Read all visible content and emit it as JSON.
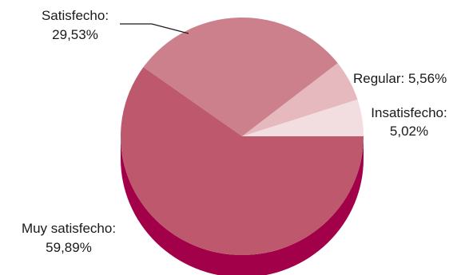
{
  "chart_data": {
    "type": "pie",
    "style": "3d",
    "slices": [
      {
        "name": "Insatisfecho",
        "value": 5.02,
        "value_label": "5,02%",
        "color": "#f2dde0"
      },
      {
        "name": "Regular",
        "value": 5.56,
        "value_label": "5,56%",
        "color": "#e6b9bf"
      },
      {
        "name": "Satisfecho",
        "value": 29.53,
        "value_label": "29,53%",
        "color": "#cc808b"
      },
      {
        "name": "Muy satisfecho",
        "value": 59.89,
        "value_label": "59,89%",
        "color": "#bd586d"
      }
    ],
    "depth_color": "#a3004a",
    "labels": {
      "insatisfecho": {
        "name": "Insatisfecho:",
        "value": "5,02%"
      },
      "regular": {
        "text": "Regular: 5,56%"
      },
      "satisfecho": {
        "name": "Satisfecho:",
        "value": "29,53%"
      },
      "muy_satisfecho": {
        "name": "Muy satisfecho:",
        "value": "59,89%"
      }
    },
    "legend": "none"
  }
}
